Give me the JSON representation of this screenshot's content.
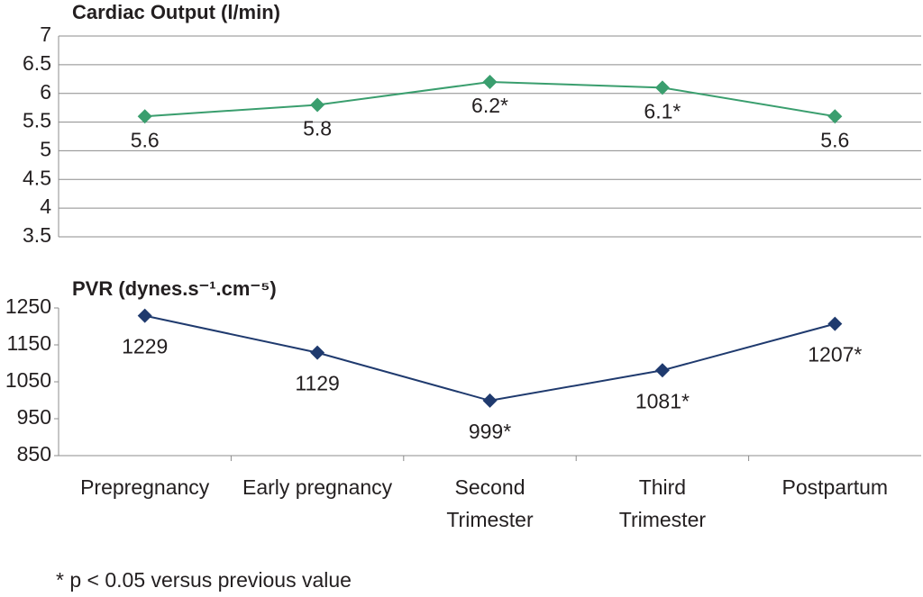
{
  "chart_data": [
    {
      "type": "line",
      "title": "Cardiac Output (l/min)",
      "values": [
        5.6,
        5.8,
        6.2,
        6.1,
        5.6
      ],
      "value_labels": [
        "5.6",
        "5.8",
        "6.2*",
        "6.1*",
        "5.6"
      ],
      "color": "#3a9e6e",
      "ylim": [
        3.5,
        7
      ],
      "yticks": [
        3.5,
        4,
        4.5,
        5,
        5.5,
        6,
        6.5,
        7
      ],
      "grid": true,
      "marker": "diamond"
    },
    {
      "type": "line",
      "title": "PVR (dynes.s⁻¹.cm⁻⁵)",
      "values": [
        1229,
        1129,
        999,
        1081,
        1207
      ],
      "value_labels": [
        "1229",
        "1129",
        "999*",
        "1081*",
        "1207*"
      ],
      "color": "#1f3a6e",
      "categories": [
        "Prepregnancy",
        "Early pregnancy",
        "Second\nTrimester",
        "Third\nTrimester",
        "Postpartum"
      ],
      "ylim": [
        850,
        1250
      ],
      "yticks": [
        850,
        950,
        1050,
        1150,
        1250
      ],
      "grid": false,
      "marker": "diamond"
    }
  ],
  "footnote": "* p < 0.05 versus previous value"
}
